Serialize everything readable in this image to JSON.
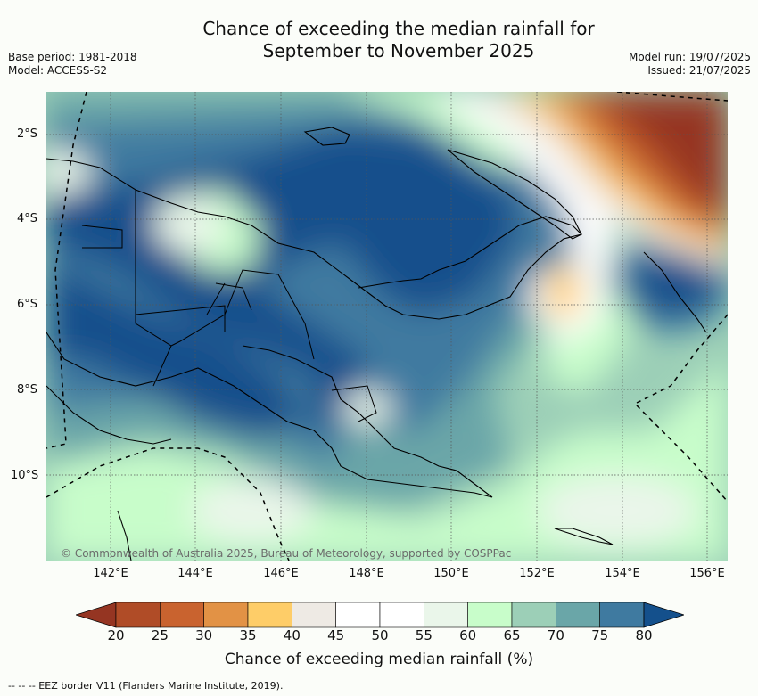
{
  "header": {
    "title_line1": "Chance of exceeding the median rainfall for",
    "title_line2": "September to November 2025",
    "base_period": "Base period: 1981-2018",
    "model": "Model: ACCESS-S2",
    "model_run": "Model run: 19/07/2025",
    "issued": "Issued: 21/07/2025"
  },
  "map": {
    "lat_labels": [
      "2°S",
      "4°S",
      "6°S",
      "8°S",
      "10°S"
    ],
    "lon_labels": [
      "142°E",
      "144°E",
      "146°E",
      "148°E",
      "150°E",
      "152°E",
      "154°E",
      "156°E"
    ],
    "copyright": "© Commonwealth of Australia 2025, Bureau of Meteorology, supported by COSPPac",
    "colors": {
      "dark_blue": "#14508c",
      "blue": "#3f7aa0",
      "teal": "#6aa6a8",
      "sea_green": "#9ccfb7",
      "light_green": "#c8fdca",
      "pale": "#eaf6ea",
      "white": "#ffffff",
      "grey": "#eeeae4",
      "yellow": "#fecd68",
      "orange": "#e29245",
      "dark_orange": "#c9632f",
      "rust": "#b04c27",
      "brown": "#953522"
    }
  },
  "colorbar": {
    "ticks": [
      "20",
      "25",
      "30",
      "35",
      "40",
      "45",
      "50",
      "55",
      "60",
      "65",
      "70",
      "75",
      "80"
    ],
    "colors": [
      "#b04c27",
      "#c9632f",
      "#e29245",
      "#fecd68",
      "#eeeae4",
      "#ffffff",
      "#ffffff",
      "#eaf6ea",
      "#c8fdca",
      "#9ccfb7",
      "#6aa6a8",
      "#3f7aa0"
    ],
    "low_color": "#953522",
    "high_color": "#14508c",
    "label": "Chance of exceeding median rainfall (%)"
  },
  "legend": {
    "eez": "--  --  -- EEZ border V11 (Flanders Marine Institute, 2019)."
  }
}
